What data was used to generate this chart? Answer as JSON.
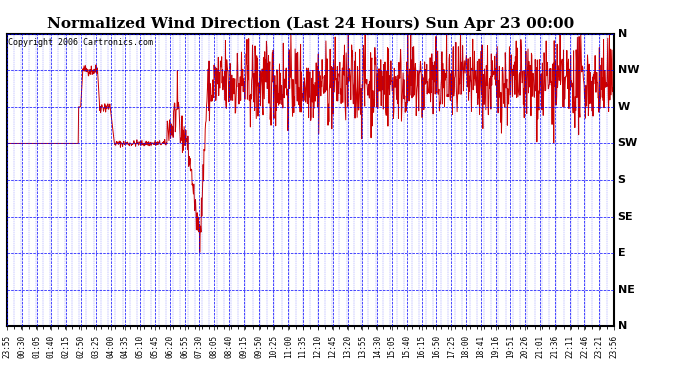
{
  "title": "Normalized Wind Direction (Last 24 Hours) Sun Apr 23 00:00",
  "copyright": "Copyright 2006 Cartronics.com",
  "bg_color": "#ffffff",
  "plot_bg_color": "#ffffff",
  "grid_color_dash": "#0000ff",
  "line_color": "#cc0000",
  "ytick_labels": [
    "N",
    "NW",
    "W",
    "SW",
    "S",
    "SE",
    "E",
    "NE",
    "N"
  ],
  "ytick_values": [
    1.0,
    0.875,
    0.75,
    0.625,
    0.5,
    0.375,
    0.25,
    0.125,
    0.0
  ],
  "xtick_labels": [
    "23:55",
    "00:30",
    "01:05",
    "01:40",
    "02:15",
    "02:50",
    "03:25",
    "04:00",
    "04:35",
    "05:10",
    "05:45",
    "06:20",
    "06:55",
    "07:30",
    "08:05",
    "08:40",
    "09:15",
    "09:50",
    "10:25",
    "11:00",
    "11:35",
    "12:10",
    "12:45",
    "13:20",
    "13:55",
    "14:30",
    "15:05",
    "15:40",
    "16:15",
    "16:50",
    "17:25",
    "18:00",
    "18:41",
    "19:16",
    "19:51",
    "20:26",
    "21:01",
    "21:36",
    "22:11",
    "22:46",
    "23:21",
    "23:56"
  ],
  "ylim": [
    0.0,
    1.0
  ],
  "figsize": [
    6.9,
    3.75
  ],
  "dpi": 100,
  "title_fontsize": 11,
  "copyright_fontsize": 6,
  "xtick_fontsize": 5.5,
  "ytick_fontsize": 8
}
